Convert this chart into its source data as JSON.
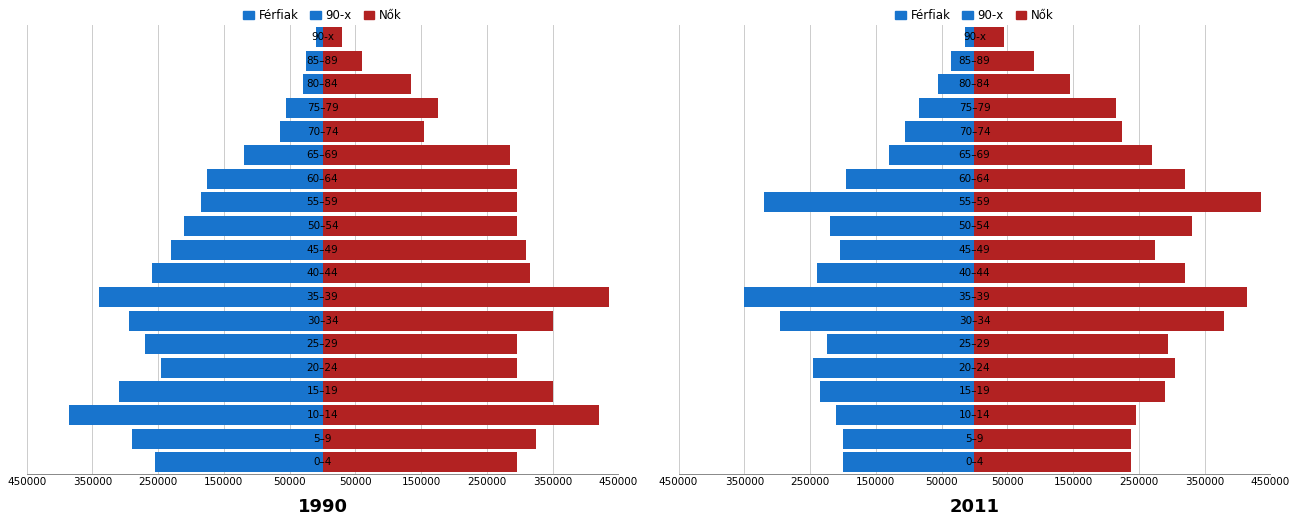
{
  "age_groups_bottom_to_top": [
    "0–4",
    "5–9",
    "10–14",
    "15–19",
    "20–24",
    "25–29",
    "30–34",
    "35–39",
    "40–44",
    "45–49",
    "50–54",
    "55–59",
    "60–64",
    "65–69",
    "70–74",
    "75–79",
    "80–84",
    "85–89",
    "90-x"
  ],
  "1990_males": [
    255000,
    290000,
    385000,
    310000,
    245000,
    270000,
    295000,
    340000,
    260000,
    230000,
    210000,
    185000,
    175000,
    120000,
    65000,
    55000,
    30000,
    25000,
    10000
  ],
  "1990_females": [
    295000,
    325000,
    420000,
    350000,
    295000,
    295000,
    350000,
    435000,
    315000,
    310000,
    295000,
    295000,
    295000,
    285000,
    155000,
    175000,
    135000,
    60000,
    30000
  ],
  "2011_males": [
    200000,
    200000,
    210000,
    235000,
    245000,
    225000,
    295000,
    350000,
    240000,
    205000,
    220000,
    320000,
    195000,
    130000,
    105000,
    85000,
    55000,
    35000,
    15000
  ],
  "2011_females": [
    238000,
    238000,
    245000,
    290000,
    305000,
    295000,
    380000,
    415000,
    320000,
    275000,
    330000,
    435000,
    320000,
    270000,
    225000,
    215000,
    145000,
    90000,
    45000
  ],
  "male_color": "#1874CD",
  "female_color": "#B22222",
  "male_label": "Férfiak",
  "female_label": "Nők",
  "title_1990": "1990",
  "title_2011": "2011",
  "xlim": 450000,
  "bar_height": 0.85,
  "background_color": "#ffffff",
  "grid_color": "#cccccc",
  "xtick_values": [
    450000,
    350000,
    250000,
    150000,
    50000,
    50000,
    150000,
    250000,
    350000,
    450000
  ],
  "title_fontsize": 13,
  "label_fontsize": 7.5,
  "tick_fontsize": 7.5,
  "legend_fontsize": 8.5
}
